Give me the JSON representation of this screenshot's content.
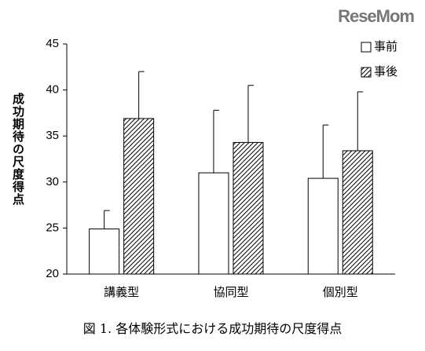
{
  "chart_data": {
    "type": "bar",
    "watermark": "ReseMom",
    "y_label": "成功期待の尺度得点",
    "caption": "図 1. 各体験形式における成功期待の尺度得点",
    "categories": [
      "講義型",
      "協同型",
      "個別型"
    ],
    "series": [
      {
        "name": "事前",
        "color": "#ffffff",
        "pattern": "solid",
        "values": [
          24.9,
          31.0,
          30.4
        ],
        "errors": [
          2.0,
          6.8,
          5.8
        ]
      },
      {
        "name": "事後",
        "color": "#ffffff",
        "pattern": "hatch",
        "values": [
          36.9,
          34.3,
          33.4
        ],
        "errors": [
          5.1,
          6.2,
          6.4
        ]
      }
    ],
    "ylim": [
      20,
      45
    ],
    "yticks": [
      20,
      25,
      30,
      35,
      40,
      45
    ],
    "grid": false,
    "legend": "top-right"
  }
}
